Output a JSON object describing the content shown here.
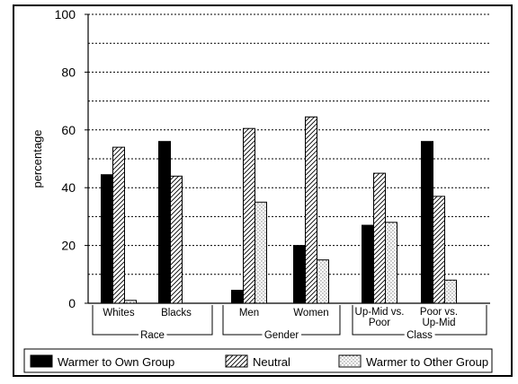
{
  "chart_data": {
    "type": "bar",
    "title": "",
    "xlabel": "",
    "ylabel": "percentage",
    "ylim": [
      0,
      100
    ],
    "yticks": [
      0,
      20,
      40,
      60,
      80,
      100
    ],
    "grid": true,
    "legend_position": "bottom",
    "series": [
      {
        "name": "Warmer to Own Group",
        "color": "#000000",
        "pattern": "solid"
      },
      {
        "name": "Neutral",
        "color": "#ffffff",
        "pattern": "diagonal-hatch"
      },
      {
        "name": "Warmer to Other Group",
        "color": "#ffffff",
        "pattern": "dots"
      }
    ],
    "groups": [
      {
        "name": "Race",
        "categories": [
          {
            "label": "Whites",
            "values": [
              44.5,
              54,
              1
            ]
          },
          {
            "label": "Blacks",
            "values": [
              56,
              44,
              0
            ]
          }
        ]
      },
      {
        "name": "Gender",
        "categories": [
          {
            "label": "Men",
            "values": [
              4.5,
              60.5,
              35
            ]
          },
          {
            "label": "Women",
            "values": [
              20,
              64.5,
              15
            ]
          }
        ]
      },
      {
        "name": "Class",
        "categories": [
          {
            "label": "Up-Mid vs.\nPoor",
            "values": [
              27,
              45,
              28
            ]
          },
          {
            "label": "Poor vs.\nUp-Mid",
            "values": [
              56,
              37,
              8
            ]
          }
        ]
      }
    ]
  }
}
